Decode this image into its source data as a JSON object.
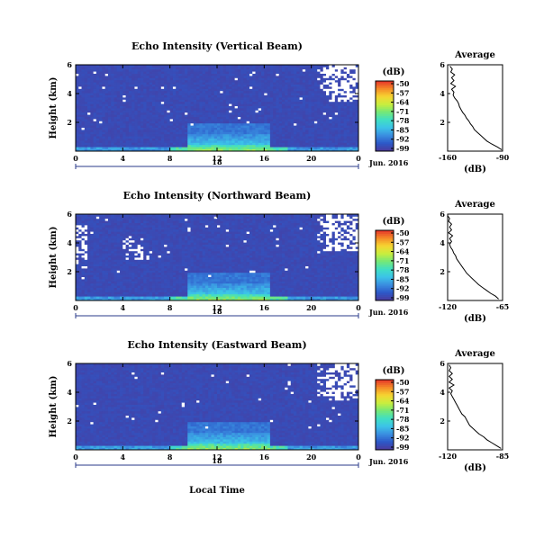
{
  "figure": {
    "xlabel": "Local Time",
    "date_label": "Jun. 2016",
    "colorbar_unit": "(dB)",
    "colorbar_ticks": [
      "-50",
      "-57",
      "-64",
      "-71",
      "-78",
      "-85",
      "-92",
      "-99"
    ],
    "colormap": [
      "#4b3a9c",
      "#2d58c8",
      "#3a8ee0",
      "#3cc3e8",
      "#40dfc4",
      "#74e878",
      "#c9ee3e",
      "#f6d531",
      "#f58a28",
      "#e5322a"
    ],
    "background_level_color": "#3b3d78"
  },
  "chart_data": [
    {
      "type": "heatmap",
      "title": "Echo Intensity (Vertical Beam)",
      "ylabel": "Height (km)",
      "xlim": [
        0,
        24
      ],
      "x_ticks": [
        "0",
        "4",
        "8",
        "12",
        "16",
        "20",
        "0"
      ],
      "ylim": [
        0,
        6
      ],
      "y_ticks": [
        "2",
        "4",
        "6"
      ],
      "day_label": "18",
      "clim": [
        -99,
        -50
      ],
      "panel": "vertical",
      "profile": {
        "title": "Average",
        "xlabel": "(dB)",
        "x_ticks": [
          "-160",
          "-90"
        ],
        "xlim": [
          -160,
          -90
        ],
        "y_ticks": [
          "2",
          "4",
          "6"
        ],
        "ylim": [
          0,
          6
        ],
        "y": [
          0.1,
          0.3,
          0.5,
          0.7,
          0.9,
          1.1,
          1.3,
          1.5,
          1.7,
          1.9,
          2.1,
          2.3,
          2.5,
          2.7,
          2.9,
          3.1,
          3.3,
          3.5,
          3.7,
          3.9,
          4.1,
          4.3,
          4.5,
          4.7,
          4.9,
          5.1,
          5.3,
          5.5,
          5.7,
          5.9
        ],
        "values": [
          -91,
          -97,
          -104,
          -110,
          -114,
          -118,
          -122,
          -126,
          -128,
          -131,
          -133,
          -136,
          -138,
          -141,
          -143,
          -145,
          -146,
          -148,
          -151,
          -153,
          -152,
          -155,
          -150,
          -156,
          -152,
          -155,
          -151,
          -156,
          -154,
          -157
        ]
      }
    },
    {
      "type": "heatmap",
      "title": "Echo Intensity (Northward Beam)",
      "ylabel": "Height (km)",
      "xlim": [
        0,
        24
      ],
      "x_ticks": [
        "0",
        "4",
        "8",
        "12",
        "16",
        "20",
        "0"
      ],
      "ylim": [
        0,
        6
      ],
      "y_ticks": [
        "2",
        "4",
        "6"
      ],
      "day_label": "18",
      "clim": [
        -99,
        -50
      ],
      "panel": "north",
      "profile": {
        "title": "Average",
        "xlabel": "(dB)",
        "x_ticks": [
          "-120",
          "-65"
        ],
        "xlim": [
          -120,
          -65
        ],
        "y_ticks": [
          "2",
          "4",
          "6"
        ],
        "ylim": [
          0,
          6
        ],
        "y": [
          0.1,
          0.3,
          0.5,
          0.7,
          0.9,
          1.1,
          1.3,
          1.5,
          1.7,
          1.9,
          2.1,
          2.3,
          2.5,
          2.7,
          2.9,
          3.1,
          3.3,
          3.5,
          3.7,
          3.9,
          4.1,
          4.3,
          4.5,
          4.7,
          4.9,
          5.1,
          5.3,
          5.5,
          5.7,
          5.9
        ],
        "values": [
          -69,
          -72,
          -77,
          -81,
          -85,
          -89,
          -92,
          -95,
          -98,
          -101,
          -103,
          -105,
          -107,
          -109,
          -111,
          -112,
          -114,
          -115,
          -117,
          -118,
          -116,
          -118,
          -115,
          -119,
          -116,
          -118,
          -116,
          -119,
          -118,
          -120
        ]
      }
    },
    {
      "type": "heatmap",
      "title": "Echo Intensity (Eastward Beam)",
      "ylabel": "Height (km)",
      "xlim": [
        0,
        24
      ],
      "x_ticks": [
        "0",
        "4",
        "8",
        "12",
        "16",
        "20",
        "0"
      ],
      "ylim": [
        0,
        6
      ],
      "y_ticks": [
        "2",
        "4",
        "6"
      ],
      "day_label": "18",
      "clim": [
        -99,
        -50
      ],
      "panel": "east",
      "profile": {
        "title": "Average",
        "xlabel": "(dB)",
        "x_ticks": [
          "-120",
          "-85"
        ],
        "xlim": [
          -120,
          -85
        ],
        "y_ticks": [
          "2",
          "4",
          "6"
        ],
        "ylim": [
          0,
          6
        ],
        "y": [
          0.1,
          0.3,
          0.5,
          0.7,
          0.9,
          1.1,
          1.3,
          1.5,
          1.7,
          1.9,
          2.1,
          2.3,
          2.5,
          2.7,
          2.9,
          3.1,
          3.3,
          3.5,
          3.7,
          3.9,
          4.1,
          4.3,
          4.5,
          4.7,
          4.9,
          5.1,
          5.3,
          5.5,
          5.7,
          5.9
        ],
        "values": [
          -86,
          -89,
          -92,
          -95,
          -97,
          -100,
          -102,
          -104,
          -106,
          -107,
          -108,
          -109,
          -111,
          -112,
          -113,
          -114,
          -115,
          -116,
          -117,
          -118,
          -117,
          -119,
          -116,
          -119,
          -117,
          -119,
          -117,
          -119,
          -118,
          -119
        ]
      }
    }
  ]
}
